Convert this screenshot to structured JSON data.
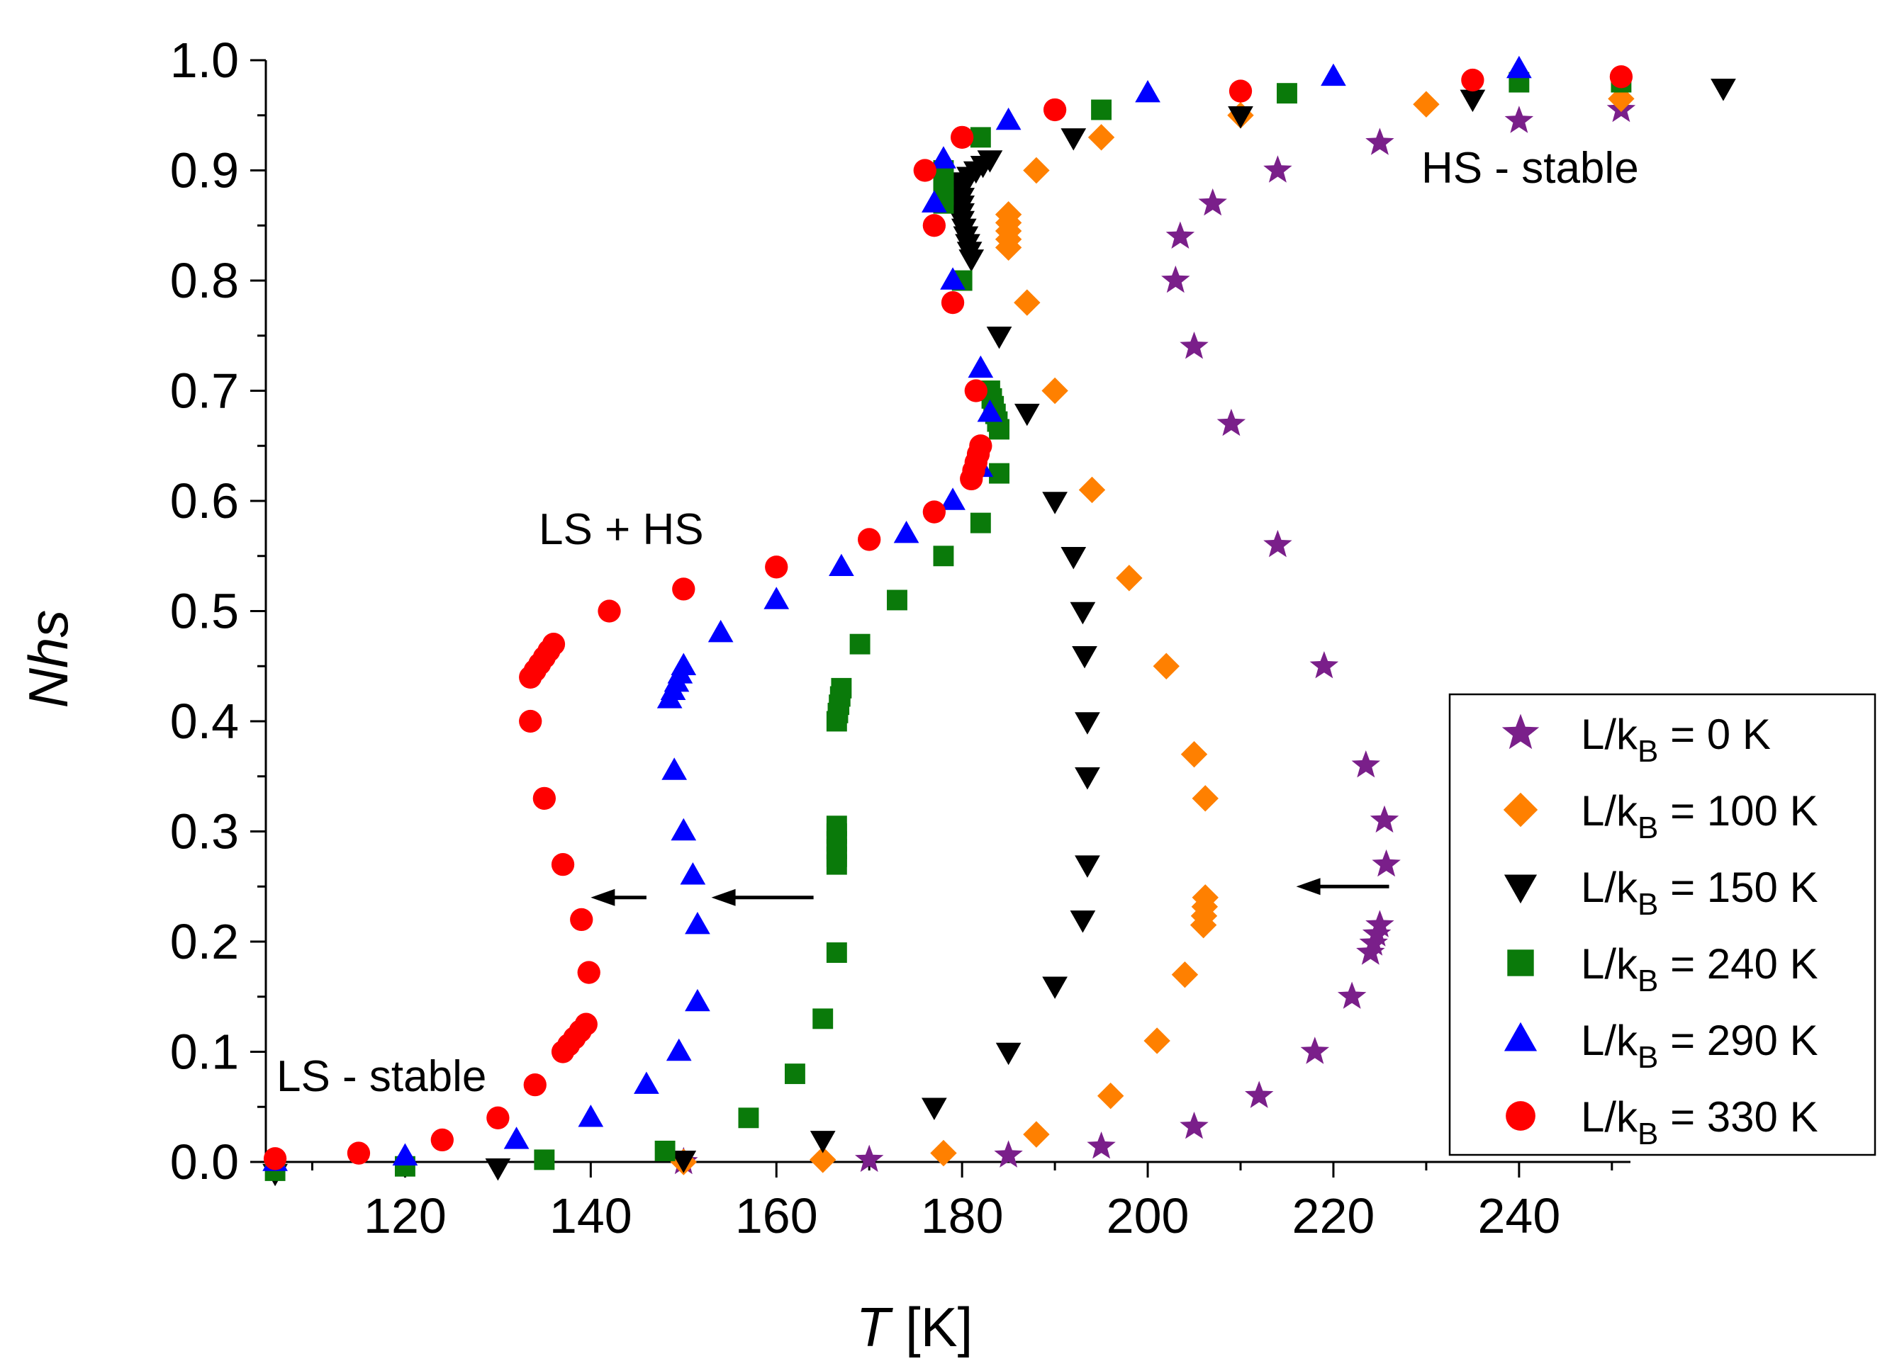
{
  "chart_data": {
    "type": "scatter",
    "title": "",
    "xlabel_italic": "T",
    "xlabel_rest": " [K]",
    "ylabel": "Nhs",
    "xlim": [
      105,
      252
    ],
    "ylim": [
      0.0,
      1.0
    ],
    "xticks": [
      120,
      140,
      160,
      180,
      200,
      220,
      240
    ],
    "xtick_labels": [
      "120",
      "140",
      "160",
      "180",
      "200",
      "220",
      "240"
    ],
    "yticks": [
      0.0,
      0.1,
      0.2,
      0.3,
      0.4,
      0.5,
      0.6,
      0.7,
      0.8,
      0.9,
      1.0
    ],
    "ytick_labels": [
      "0.0",
      "0.1",
      "0.2",
      "0.3",
      "0.4",
      "0.5",
      "0.6",
      "0.7",
      "0.8",
      "0.9",
      "1.0"
    ],
    "legend_position": "lower-right",
    "annotations": [
      {
        "text": "HS - stable"
      },
      {
        "text": "LS + HS"
      },
      {
        "text": "LS - stable"
      }
    ],
    "arrows": [
      {
        "from": [
          226,
          0.25
        ],
        "to": [
          216,
          0.25
        ]
      },
      {
        "from": [
          164,
          0.24
        ],
        "to": [
          153,
          0.24
        ]
      },
      {
        "from": [
          146,
          0.24
        ],
        "to": [
          140,
          0.24
        ]
      }
    ],
    "series": [
      {
        "name": "L/kB = 0 K",
        "legend_main": "L/k",
        "legend_sub": "B",
        "legend_rest": " = 0 K",
        "marker": "star",
        "color": "#7a1f8a",
        "points": [
          [
            150,
            0.0
          ],
          [
            170,
            0.002
          ],
          [
            185,
            0.006
          ],
          [
            195,
            0.014
          ],
          [
            205,
            0.032
          ],
          [
            212,
            0.06
          ],
          [
            218,
            0.1
          ],
          [
            222,
            0.15
          ],
          [
            224,
            0.19
          ],
          [
            225,
            0.215
          ],
          [
            225.7,
            0.27
          ],
          [
            225.5,
            0.31
          ],
          [
            223.5,
            0.36
          ],
          [
            219,
            0.45
          ],
          [
            214,
            0.56
          ],
          [
            209,
            0.67
          ],
          [
            205,
            0.74
          ],
          [
            203,
            0.8
          ],
          [
            203.5,
            0.84
          ],
          [
            207,
            0.87
          ],
          [
            214,
            0.9
          ],
          [
            225,
            0.925
          ],
          [
            240,
            0.945
          ],
          [
            251,
            0.955
          ]
        ]
      },
      {
        "name": "L/kB = 100 K",
        "legend_main": "L/k",
        "legend_sub": "B",
        "legend_rest": " = 100 K",
        "marker": "diamond",
        "color": "#ff8000",
        "points": [
          [
            150,
            0.0
          ],
          [
            165,
            0.002
          ],
          [
            178,
            0.008
          ],
          [
            188,
            0.025
          ],
          [
            196,
            0.06
          ],
          [
            201,
            0.11
          ],
          [
            204,
            0.17
          ],
          [
            206,
            0.215
          ],
          [
            206.2,
            0.24
          ],
          [
            206.2,
            0.33
          ],
          [
            205,
            0.37
          ],
          [
            202,
            0.45
          ],
          [
            198,
            0.53
          ],
          [
            194,
            0.61
          ],
          [
            190,
            0.7
          ],
          [
            187,
            0.78
          ],
          [
            185,
            0.83
          ],
          [
            185,
            0.86
          ],
          [
            188,
            0.9
          ],
          [
            195,
            0.93
          ],
          [
            210,
            0.95
          ],
          [
            230,
            0.96
          ],
          [
            251,
            0.965
          ]
        ]
      },
      {
        "name": "L/kB = 150 K",
        "legend_main": "L/k",
        "legend_sub": "B",
        "legend_rest": " = 150 K",
        "marker": "triangle-down",
        "color": "#000000",
        "points": [
          [
            106,
            -0.01
          ],
          [
            130,
            -0.005
          ],
          [
            150,
            0.002
          ],
          [
            165,
            0.02
          ],
          [
            177,
            0.05
          ],
          [
            185,
            0.1
          ],
          [
            190,
            0.16
          ],
          [
            193,
            0.22
          ],
          [
            193.5,
            0.27
          ],
          [
            193.5,
            0.35
          ],
          [
            193.5,
            0.4
          ],
          [
            193.2,
            0.46
          ],
          [
            193,
            0.5
          ],
          [
            192,
            0.55
          ],
          [
            190,
            0.6
          ],
          [
            187,
            0.68
          ],
          [
            184,
            0.75
          ],
          [
            181,
            0.82
          ],
          [
            180,
            0.855
          ],
          [
            180,
            0.89
          ],
          [
            183,
            0.91
          ],
          [
            192,
            0.93
          ],
          [
            210,
            0.95
          ],
          [
            235,
            0.965
          ],
          [
            262,
            0.975
          ]
        ]
      },
      {
        "name": "L/kB = 240 K",
        "legend_main": "L/k",
        "legend_sub": "B",
        "legend_rest": " = 240 K",
        "marker": "square",
        "color": "#0a7a0a",
        "points": [
          [
            106,
            -0.008
          ],
          [
            120,
            -0.004
          ],
          [
            135,
            0.002
          ],
          [
            148,
            0.01
          ],
          [
            157,
            0.04
          ],
          [
            162,
            0.08
          ],
          [
            165,
            0.13
          ],
          [
            166.5,
            0.19
          ],
          [
            166.5,
            0.27
          ],
          [
            166.5,
            0.305
          ],
          [
            166.5,
            0.4
          ],
          [
            167,
            0.43
          ],
          [
            169,
            0.47
          ],
          [
            173,
            0.51
          ],
          [
            178,
            0.55
          ],
          [
            182,
            0.58
          ],
          [
            184,
            0.625
          ],
          [
            184,
            0.665
          ],
          [
            183,
            0.7
          ],
          [
            180,
            0.8
          ],
          [
            178,
            0.87
          ],
          [
            178,
            0.9
          ],
          [
            182,
            0.93
          ],
          [
            195,
            0.955
          ],
          [
            215,
            0.97
          ],
          [
            240,
            0.98
          ],
          [
            251,
            0.98
          ]
        ]
      },
      {
        "name": "L/kB = 290 K",
        "legend_main": "L/k",
        "legend_sub": "B",
        "legend_rest": " = 290 K",
        "marker": "triangle-up",
        "color": "#0000ff",
        "points": [
          [
            106,
            0.0
          ],
          [
            120,
            0.005
          ],
          [
            132,
            0.02
          ],
          [
            140,
            0.04
          ],
          [
            146,
            0.07
          ],
          [
            149.5,
            0.1
          ],
          [
            151.5,
            0.145
          ],
          [
            151.5,
            0.215
          ],
          [
            151,
            0.26
          ],
          [
            150,
            0.3
          ],
          [
            149,
            0.355
          ],
          [
            148.5,
            0.42
          ],
          [
            150,
            0.45
          ],
          [
            154,
            0.48
          ],
          [
            160,
            0.51
          ],
          [
            167,
            0.54
          ],
          [
            174,
            0.57
          ],
          [
            179,
            0.6
          ],
          [
            182,
            0.63
          ],
          [
            183,
            0.68
          ],
          [
            182,
            0.72
          ],
          [
            179,
            0.8
          ],
          [
            177,
            0.87
          ],
          [
            178,
            0.91
          ],
          [
            185,
            0.945
          ],
          [
            200,
            0.97
          ],
          [
            220,
            0.985
          ],
          [
            240,
            0.992
          ]
        ]
      },
      {
        "name": "L/kB = 330 K",
        "legend_main": "L/k",
        "legend_sub": "B",
        "legend_rest": " = 330 K",
        "marker": "circle",
        "color": "#ff0000",
        "points": [
          [
            106,
            0.003
          ],
          [
            115,
            0.008
          ],
          [
            124,
            0.02
          ],
          [
            130,
            0.04
          ],
          [
            134,
            0.07
          ],
          [
            137,
            0.1
          ],
          [
            139.5,
            0.125
          ],
          [
            139.8,
            0.172
          ],
          [
            139,
            0.22
          ],
          [
            137,
            0.27
          ],
          [
            135,
            0.33
          ],
          [
            133.5,
            0.4
          ],
          [
            133.5,
            0.44
          ],
          [
            136,
            0.47
          ],
          [
            142,
            0.5
          ],
          [
            150,
            0.52
          ],
          [
            160,
            0.54
          ],
          [
            170,
            0.565
          ],
          [
            177,
            0.59
          ],
          [
            181,
            0.62
          ],
          [
            182,
            0.65
          ],
          [
            181.5,
            0.7
          ],
          [
            179,
            0.78
          ],
          [
            177,
            0.85
          ],
          [
            176,
            0.9
          ],
          [
            180,
            0.93
          ],
          [
            190,
            0.955
          ],
          [
            210,
            0.972
          ],
          [
            235,
            0.982
          ],
          [
            251,
            0.985
          ]
        ]
      }
    ]
  }
}
